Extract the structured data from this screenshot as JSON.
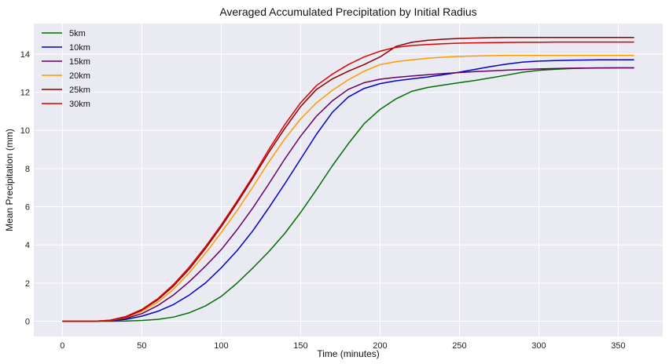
{
  "chart_data": {
    "type": "line",
    "title": "Averaged Accumulated Precipitation by Initial Radius",
    "xlabel": "Time (minutes)",
    "ylabel": "Mean Precipitation (mm)",
    "xlim": [
      -18,
      378
    ],
    "ylim": [
      -0.8,
      15.6
    ],
    "x_ticks": [
      0,
      50,
      100,
      150,
      200,
      250,
      300,
      350
    ],
    "y_ticks": [
      0,
      2,
      4,
      6,
      8,
      10,
      12,
      14
    ],
    "grid": true,
    "legend_position": "upper-left",
    "background": "#eaeaf2",
    "x": [
      0,
      10,
      20,
      30,
      40,
      50,
      60,
      70,
      80,
      90,
      100,
      110,
      120,
      130,
      140,
      150,
      160,
      170,
      180,
      190,
      200,
      210,
      220,
      230,
      240,
      250,
      260,
      270,
      280,
      290,
      300,
      310,
      320,
      330,
      340,
      350,
      360
    ],
    "series": [
      {
        "name": "5km",
        "color": "#007000",
        "values": [
          0,
          0,
          0,
          0,
          0.01,
          0.04,
          0.1,
          0.22,
          0.45,
          0.8,
          1.3,
          2.0,
          2.8,
          3.65,
          4.6,
          5.7,
          6.9,
          8.15,
          9.3,
          10.35,
          11.1,
          11.65,
          12.05,
          12.25,
          12.38,
          12.5,
          12.62,
          12.76,
          12.9,
          13.05,
          13.15,
          13.2,
          13.24,
          13.26,
          13.27,
          13.28,
          13.28
        ]
      },
      {
        "name": "10km",
        "color": "#0000cc",
        "values": [
          0,
          0,
          0,
          0.02,
          0.1,
          0.27,
          0.52,
          0.88,
          1.38,
          2.0,
          2.8,
          3.7,
          4.75,
          5.95,
          7.2,
          8.5,
          9.8,
          10.95,
          11.75,
          12.2,
          12.45,
          12.6,
          12.7,
          12.8,
          12.92,
          13.05,
          13.2,
          13.35,
          13.48,
          13.58,
          13.63,
          13.66,
          13.68,
          13.69,
          13.7,
          13.7,
          13.7
        ]
      },
      {
        "name": "15km",
        "color": "#660066",
        "values": [
          0,
          0,
          0,
          0.03,
          0.15,
          0.4,
          0.82,
          1.38,
          2.08,
          2.88,
          3.75,
          4.8,
          5.95,
          7.2,
          8.5,
          9.7,
          10.75,
          11.55,
          12.15,
          12.5,
          12.68,
          12.78,
          12.85,
          12.92,
          12.98,
          13.03,
          13.08,
          13.12,
          13.16,
          13.19,
          13.22,
          13.24,
          13.26,
          13.27,
          13.28,
          13.28,
          13.28
        ]
      },
      {
        "name": "20km",
        "color": "#ff9900",
        "values": [
          0,
          0,
          0,
          0.04,
          0.2,
          0.52,
          1.0,
          1.68,
          2.55,
          3.55,
          4.65,
          5.8,
          7.05,
          8.35,
          9.55,
          10.6,
          11.45,
          12.1,
          12.65,
          13.1,
          13.45,
          13.6,
          13.7,
          13.78,
          13.84,
          13.88,
          13.9,
          13.92,
          13.93,
          13.93,
          13.93,
          13.93,
          13.93,
          13.93,
          13.93,
          13.93,
          13.93
        ]
      },
      {
        "name": "25km",
        "color": "#8b0000",
        "values": [
          0,
          0,
          0,
          0.05,
          0.22,
          0.58,
          1.12,
          1.85,
          2.75,
          3.8,
          4.95,
          6.2,
          7.5,
          8.85,
          10.1,
          11.25,
          12.15,
          12.7,
          13.1,
          13.45,
          13.85,
          14.4,
          14.62,
          14.72,
          14.78,
          14.82,
          14.84,
          14.86,
          14.87,
          14.87,
          14.87,
          14.87,
          14.87,
          14.87,
          14.87,
          14.87,
          14.87
        ]
      },
      {
        "name": "30km",
        "color": "#dd0000",
        "values": [
          0,
          0,
          0,
          0.06,
          0.25,
          0.62,
          1.18,
          1.93,
          2.85,
          3.9,
          5.05,
          6.3,
          7.6,
          9.0,
          10.3,
          11.45,
          12.35,
          12.95,
          13.45,
          13.85,
          14.15,
          14.35,
          14.45,
          14.5,
          14.54,
          14.57,
          14.59,
          14.6,
          14.61,
          14.62,
          14.62,
          14.63,
          14.63,
          14.63,
          14.63,
          14.63,
          14.63
        ]
      }
    ]
  }
}
